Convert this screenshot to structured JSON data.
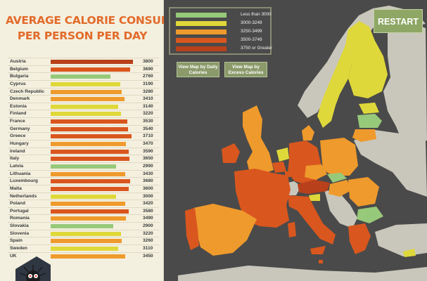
{
  "title": {
    "line1": "AVERAGE CALORIE CONSUMPTION",
    "line2": "PER PERSON PER DAY"
  },
  "colors": {
    "less_than_3000": "#97c97a",
    "3000_3249": "#dfd83a",
    "3250_3499": "#ef9a2c",
    "3500_3749": "#d9571e",
    "3750_or_greater": "#b8401a",
    "non_eu": "#c9c7bb",
    "map_bg": "#4a4a4a",
    "title_orange": "#e26b2b"
  },
  "countries": [
    {
      "name": "Austria",
      "value": "3800",
      "color": "#b8401a",
      "fill": 0.96
    },
    {
      "name": "Belgium",
      "value": "3690",
      "color": "#d9571e",
      "fill": 0.93
    },
    {
      "name": "Bulgaria",
      "value": "2760",
      "color": "#97c97a",
      "fill": 0.7
    },
    {
      "name": "Cyprus",
      "value": "3190",
      "color": "#dfd83a",
      "fill": 0.81
    },
    {
      "name": "Czech Republic",
      "value": "3280",
      "color": "#ef9a2c",
      "fill": 0.83
    },
    {
      "name": "Denmark",
      "value": "3410",
      "color": "#ef9a2c",
      "fill": 0.86
    },
    {
      "name": "Estonia",
      "value": "3140",
      "color": "#dfd83a",
      "fill": 0.79
    },
    {
      "name": "Finland",
      "value": "3220",
      "color": "#dfd83a",
      "fill": 0.82
    },
    {
      "name": "France",
      "value": "3530",
      "color": "#d9571e",
      "fill": 0.89
    },
    {
      "name": "Germany",
      "value": "3540",
      "color": "#d9571e",
      "fill": 0.9
    },
    {
      "name": "Greece",
      "value": "3710",
      "color": "#d9571e",
      "fill": 0.94
    },
    {
      "name": "Hungary",
      "value": "3470",
      "color": "#ef9a2c",
      "fill": 0.88
    },
    {
      "name": "Ireland",
      "value": "3590",
      "color": "#d9571e",
      "fill": 0.91
    },
    {
      "name": "Italy",
      "value": "3650",
      "color": "#d9571e",
      "fill": 0.92
    },
    {
      "name": "Latvia",
      "value": "2990",
      "color": "#97c97a",
      "fill": 0.76
    },
    {
      "name": "Lithuania",
      "value": "3430",
      "color": "#ef9a2c",
      "fill": 0.87
    },
    {
      "name": "Luxembourg",
      "value": "3680",
      "color": "#d9571e",
      "fill": 0.93
    },
    {
      "name": "Malta",
      "value": "3600",
      "color": "#d9571e",
      "fill": 0.91
    },
    {
      "name": "Netherlands",
      "value": "3000",
      "color": "#dfd83a",
      "fill": 0.76
    },
    {
      "name": "Poland",
      "value": "3420",
      "color": "#ef9a2c",
      "fill": 0.87
    },
    {
      "name": "Portugal",
      "value": "3580",
      "color": "#d9571e",
      "fill": 0.91
    },
    {
      "name": "Romania",
      "value": "3490",
      "color": "#ef9a2c",
      "fill": 0.88
    },
    {
      "name": "Slovakia",
      "value": "2900",
      "color": "#97c97a",
      "fill": 0.73
    },
    {
      "name": "Slovenia",
      "value": "3220",
      "color": "#dfd83a",
      "fill": 0.82
    },
    {
      "name": "Spain",
      "value": "3260",
      "color": "#ef9a2c",
      "fill": 0.83
    },
    {
      "name": "Sweden",
      "value": "3110",
      "color": "#dfd83a",
      "fill": 0.79
    },
    {
      "name": "UK",
      "value": "3450",
      "color": "#ef9a2c",
      "fill": 0.87
    }
  ],
  "legend": [
    {
      "label": "Less than 3000",
      "color": "#97c97a"
    },
    {
      "label": "3000-3249",
      "color": "#dfd83a"
    },
    {
      "label": "3250-3499",
      "color": "#ef9a2c"
    },
    {
      "label": "3500-3749",
      "color": "#d9571e"
    },
    {
      "label": "3750 or Greater",
      "color": "#b8401a"
    }
  ],
  "buttons": {
    "daily": "View Map by Daily Calories",
    "excess": "View Map by Excess Calories",
    "restart": "RESTART"
  },
  "logo_icon": "spiky-creature-icon"
}
